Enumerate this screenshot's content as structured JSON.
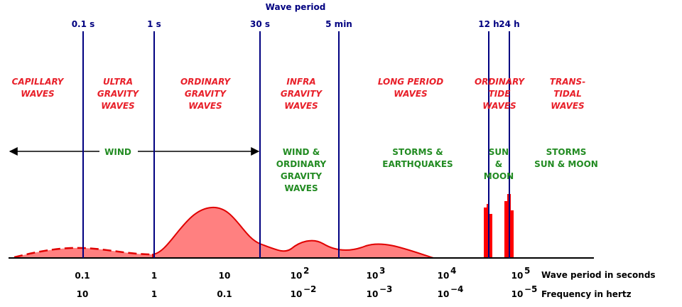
{
  "header": {
    "title": "Wave period"
  },
  "period_markers": [
    "0.1 s",
    "1 s",
    "30 s",
    "5 min",
    "12 h",
    "24 h"
  ],
  "wave_types": [
    [
      "CAPILLARY",
      "WAVES"
    ],
    [
      "ULTRA",
      "GRAVITY",
      "WAVES"
    ],
    [
      "ORDINARY",
      "GRAVITY",
      "WAVES"
    ],
    [
      "INFRA",
      "GRAVITY",
      "WAVES"
    ],
    [
      "LONG PERIOD",
      "WAVES"
    ],
    [
      "ORDINARY",
      "TIDE",
      "WAVES"
    ],
    [
      "TRANS-",
      "TIDAL",
      "WAVES"
    ]
  ],
  "forcing": [
    [
      "WIND"
    ],
    [
      "WIND &",
      "ORDINARY",
      "GRAVITY",
      "WAVES"
    ],
    [
      "STORMS &",
      "EARTHQUAKES"
    ],
    [
      "SUN",
      "&",
      "MOON"
    ],
    [
      "STORMS",
      "SUN & MOON"
    ]
  ],
  "period_ticks": [
    {
      "base": "0.1"
    },
    {
      "base": "1"
    },
    {
      "base": "10"
    },
    {
      "base": "10",
      "exp": "2"
    },
    {
      "base": "10",
      "exp": "3"
    },
    {
      "base": "10",
      "exp": "4"
    },
    {
      "base": "10",
      "exp": "5"
    }
  ],
  "frequency_ticks": [
    {
      "base": "10"
    },
    {
      "base": "1"
    },
    {
      "base": "0.1"
    },
    {
      "base": "10",
      "exp": "−2"
    },
    {
      "base": "10",
      "exp": "−3"
    },
    {
      "base": "10",
      "exp": "−4"
    },
    {
      "base": "10",
      "exp": "−5"
    }
  ],
  "axis_labels": {
    "period": "Wave period in seconds",
    "frequency": "Frequency in hertz"
  }
}
